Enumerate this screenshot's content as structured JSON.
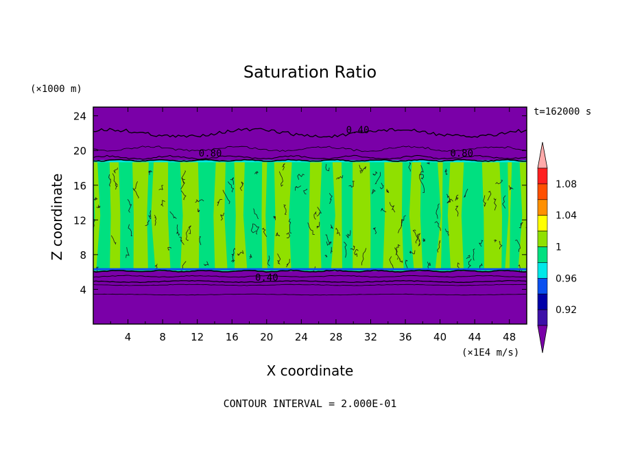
{
  "chart_data": {
    "type": "heatmap",
    "title": "Saturation Ratio",
    "xlabel": "X coordinate",
    "ylabel": "Z coordinate",
    "x_units": "(×1E4 m/s)",
    "y_units": "(×1000 m)",
    "time_label": "t=162000 s",
    "footer": "CONTOUR INTERVAL = 2.000E-01",
    "xlim": [
      0,
      50
    ],
    "ylim": [
      0,
      25
    ],
    "x_ticks": [
      "4",
      "8",
      "12",
      "16",
      "20",
      "24",
      "28",
      "32",
      "36",
      "40",
      "44",
      "48"
    ],
    "y_ticks": [
      "4",
      "8",
      "12",
      "16",
      "20",
      "24"
    ],
    "colorbar": {
      "labels": [
        "0.92",
        "0.96",
        "1",
        "1.04",
        "1.08"
      ],
      "levels": [
        0.92,
        0.94,
        0.96,
        0.98,
        1.0,
        1.02,
        1.04,
        1.06,
        1.08,
        1.1
      ],
      "colors": [
        "#7a00a8",
        "#3d10a8",
        "#0000a8",
        "#0a50f0",
        "#00e8e8",
        "#00e080",
        "#90e000",
        "#ffff00",
        "#ff9000",
        "#ff5000",
        "#ff2020",
        "#ffaaaa"
      ]
    },
    "contour_labels": [
      {
        "text": "0.40",
        "x": 30.5,
        "z": 22.0
      },
      {
        "text": "0.80",
        "x": 13.5,
        "z": 19.3
      },
      {
        "text": "0.80",
        "x": 42.5,
        "z": 19.3
      },
      {
        "text": "0.40",
        "x": 20.0,
        "z": 5.0
      }
    ],
    "regions": {
      "upper_dry_top_z": 25,
      "cloud_top_z": 18.8,
      "cloud_base_z": 6.2,
      "dry_bottom_z": 0
    }
  }
}
